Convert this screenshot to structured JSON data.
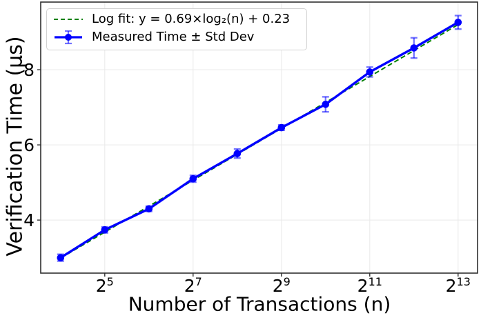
{
  "figure": {
    "background": "#ffffff",
    "spine_color": "#2e2e2e",
    "grid_color": "#e9e9e9"
  },
  "chart_data": {
    "type": "line",
    "title": "",
    "xlabel": "Number of Transactions (n)",
    "ylabel": "Verification Time (μs)",
    "x_scale": "log2",
    "x_tick_base": "2",
    "x_tick_exponents": [
      5,
      7,
      9,
      11,
      13
    ],
    "y_ticks": [
      4,
      6,
      8
    ],
    "xlim_log2": [
      3.55,
      13.44
    ],
    "ylim": [
      2.59,
      9.8
    ],
    "grid": true,
    "legend_position": "upper-left",
    "series": [
      {
        "name": "Log fit: y = 0.69×log₂(n) + 0.23",
        "type": "dashed-line",
        "color": "#008000",
        "slope": 0.69,
        "intercept": 0.23,
        "x_log2_range": [
          4,
          13
        ]
      },
      {
        "name": "Measured Time ± Std Dev",
        "type": "errorbar-line",
        "color": "#0000ff",
        "errorbar_color": "rgba(0,0,255,0.55)",
        "n": [
          16,
          32,
          64,
          128,
          256,
          512,
          1024,
          2048,
          4096,
          8192
        ],
        "x_log2": [
          4,
          5,
          6,
          7,
          8,
          9,
          10,
          11,
          12,
          13
        ],
        "y": [
          3.0,
          3.74,
          4.3,
          5.1,
          5.77,
          6.46,
          7.08,
          7.94,
          8.58,
          9.26
        ],
        "std": [
          0.09,
          0.08,
          0.07,
          0.09,
          0.12,
          0.07,
          0.2,
          0.13,
          0.27,
          0.18
        ]
      }
    ]
  }
}
